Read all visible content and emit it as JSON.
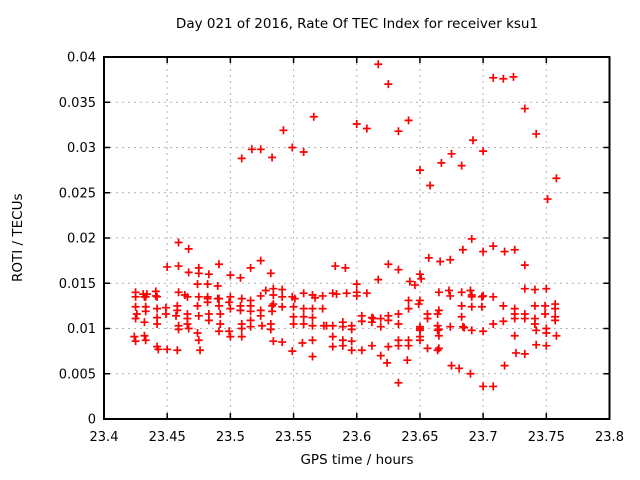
{
  "chart_data": {
    "type": "scatter",
    "title": "Day 021 of 2016, Rate Of TEC Index for receiver ksu1",
    "xlabel": "GPS time / hours",
    "ylabel": "ROTI / TECUs",
    "xlim": [
      23.4,
      23.8
    ],
    "ylim": [
      0,
      0.04
    ],
    "xticks": [
      23.4,
      23.45,
      23.5,
      23.55,
      23.6,
      23.65,
      23.7,
      23.75,
      23.8
    ],
    "xtick_labels": [
      "23.4",
      "23.45",
      "23.5",
      "23.55",
      "23.6",
      "23.65",
      "23.7",
      "23.75",
      "23.8"
    ],
    "yticks": [
      0,
      0.005,
      0.01,
      0.015,
      0.02,
      0.025,
      0.03,
      0.035,
      0.04
    ],
    "ytick_labels": [
      "0",
      "0.005",
      "0.01",
      "0.015",
      "0.02",
      "0.025",
      "0.03",
      "0.035",
      "0.04"
    ],
    "grid": "dashed",
    "legend": "none",
    "marker": "plus",
    "marker_color": "#ff0000",
    "grid_color": "#b3b3b3",
    "border_color": "#000000",
    "background_color": "#ffffff",
    "points": [
      [
        23.509,
        0.0288
      ],
      [
        23.517,
        0.0298
      ],
      [
        23.524,
        0.0298
      ],
      [
        23.533,
        0.0289
      ],
      [
        23.542,
        0.0319
      ],
      [
        23.549,
        0.03
      ],
      [
        23.558,
        0.0295
      ],
      [
        23.566,
        0.0334
      ],
      [
        23.6,
        0.0326
      ],
      [
        23.608,
        0.0321
      ],
      [
        23.617,
        0.0392
      ],
      [
        23.625,
        0.037
      ],
      [
        23.633,
        0.0318
      ],
      [
        23.641,
        0.033
      ],
      [
        23.65,
        0.0275
      ],
      [
        23.658,
        0.0258
      ],
      [
        23.667,
        0.0283
      ],
      [
        23.675,
        0.0293
      ],
      [
        23.683,
        0.028
      ],
      [
        23.692,
        0.0308
      ],
      [
        23.7,
        0.0296
      ],
      [
        23.708,
        0.0377
      ],
      [
        23.716,
        0.0376
      ],
      [
        23.724,
        0.0378
      ],
      [
        23.733,
        0.0343
      ],
      [
        23.742,
        0.0315
      ],
      [
        23.751,
        0.0243
      ],
      [
        23.758,
        0.0266
      ],
      [
        23.459,
        0.0195
      ],
      [
        23.467,
        0.0188
      ],
      [
        23.45,
        0.0168
      ],
      [
        23.459,
        0.0169
      ],
      [
        23.467,
        0.0162
      ],
      [
        23.475,
        0.0167
      ],
      [
        23.475,
        0.0161
      ],
      [
        23.483,
        0.016
      ],
      [
        23.491,
        0.0171
      ],
      [
        23.5,
        0.0159
      ],
      [
        23.508,
        0.0156
      ],
      [
        23.516,
        0.0167
      ],
      [
        23.524,
        0.0175
      ],
      [
        23.532,
        0.0161
      ],
      [
        23.583,
        0.0169
      ],
      [
        23.591,
        0.0167
      ],
      [
        23.617,
        0.0154
      ],
      [
        23.625,
        0.0171
      ],
      [
        23.633,
        0.0165
      ],
      [
        23.642,
        0.0152
      ],
      [
        23.646,
        0.0148
      ],
      [
        23.65,
        0.016
      ],
      [
        23.651,
        0.0155
      ],
      [
        23.657,
        0.0178
      ],
      [
        23.666,
        0.0174
      ],
      [
        23.674,
        0.0176
      ],
      [
        23.684,
        0.0187
      ],
      [
        23.691,
        0.0199
      ],
      [
        23.7,
        0.0185
      ],
      [
        23.708,
        0.0191
      ],
      [
        23.717,
        0.0185
      ],
      [
        23.725,
        0.0187
      ],
      [
        23.733,
        0.017
      ],
      [
        23.474,
        0.0149
      ],
      [
        23.482,
        0.0149
      ],
      [
        23.49,
        0.0147
      ],
      [
        23.6,
        0.0149
      ],
      [
        23.425,
        0.014
      ],
      [
        23.431,
        0.0138
      ],
      [
        23.434,
        0.0138
      ],
      [
        23.441,
        0.0141
      ],
      [
        23.441,
        0.0136
      ],
      [
        23.459,
        0.014
      ],
      [
        23.464,
        0.0137
      ],
      [
        23.482,
        0.0133
      ],
      [
        23.49,
        0.0133
      ],
      [
        23.509,
        0.0133
      ],
      [
        23.524,
        0.0136
      ],
      [
        23.528,
        0.0142
      ],
      [
        23.534,
        0.0144
      ],
      [
        23.534,
        0.0137
      ],
      [
        23.541,
        0.0143
      ],
      [
        23.541,
        0.0135
      ],
      [
        23.549,
        0.0135
      ],
      [
        23.551,
        0.0133
      ],
      [
        23.558,
        0.0139
      ],
      [
        23.565,
        0.0137
      ],
      [
        23.567,
        0.0134
      ],
      [
        23.573,
        0.0136
      ],
      [
        23.581,
        0.0139
      ],
      [
        23.584,
        0.0138
      ],
      [
        23.592,
        0.0139
      ],
      [
        23.6,
        0.014
      ],
      [
        23.6,
        0.0136
      ],
      [
        23.608,
        0.0139
      ],
      [
        23.641,
        0.0131
      ],
      [
        23.649,
        0.0127
      ],
      [
        23.65,
        0.0131
      ],
      [
        23.665,
        0.014
      ],
      [
        23.673,
        0.0142
      ],
      [
        23.674,
        0.0136
      ],
      [
        23.683,
        0.014
      ],
      [
        23.69,
        0.0142
      ],
      [
        23.691,
        0.0137
      ],
      [
        23.7,
        0.0136
      ],
      [
        23.708,
        0.0135
      ],
      [
        23.733,
        0.0144
      ],
      [
        23.741,
        0.0143
      ],
      [
        23.75,
        0.0144
      ],
      [
        23.425,
        0.0135
      ],
      [
        23.432,
        0.0135
      ],
      [
        23.433,
        0.0135
      ],
      [
        23.442,
        0.0135
      ],
      [
        23.466,
        0.0135
      ],
      [
        23.475,
        0.0135
      ],
      [
        23.482,
        0.0135
      ],
      [
        23.491,
        0.0133
      ],
      [
        23.5,
        0.0135
      ],
      [
        23.516,
        0.0131
      ],
      [
        23.691,
        0.0135
      ],
      [
        23.699,
        0.0135
      ],
      [
        23.425,
        0.0124
      ],
      [
        23.425,
        0.0111
      ],
      [
        23.426,
        0.0116
      ],
      [
        23.433,
        0.0124
      ],
      [
        23.433,
        0.0119
      ],
      [
        23.442,
        0.0122
      ],
      [
        23.442,
        0.0112
      ],
      [
        23.449,
        0.0123
      ],
      [
        23.449,
        0.0116
      ],
      [
        23.457,
        0.0114
      ],
      [
        23.458,
        0.0125
      ],
      [
        23.458,
        0.012
      ],
      [
        23.466,
        0.0116
      ],
      [
        23.466,
        0.0111
      ],
      [
        23.474,
        0.0125
      ],
      [
        23.475,
        0.0114
      ],
      [
        23.482,
        0.0129
      ],
      [
        23.483,
        0.0116
      ],
      [
        23.483,
        0.0109
      ],
      [
        23.491,
        0.0125
      ],
      [
        23.492,
        0.0116
      ],
      [
        23.499,
        0.0129
      ],
      [
        23.5,
        0.0122
      ],
      [
        23.508,
        0.0125
      ],
      [
        23.508,
        0.012
      ],
      [
        23.516,
        0.0125
      ],
      [
        23.516,
        0.0119
      ],
      [
        23.516,
        0.0109
      ],
      [
        23.524,
        0.012
      ],
      [
        23.524,
        0.0114
      ],
      [
        23.533,
        0.0125
      ],
      [
        23.533,
        0.0119
      ],
      [
        23.534,
        0.0127
      ],
      [
        23.541,
        0.0124
      ],
      [
        23.55,
        0.0124
      ],
      [
        23.55,
        0.0113
      ],
      [
        23.558,
        0.0122
      ],
      [
        23.558,
        0.0113
      ],
      [
        23.565,
        0.0122
      ],
      [
        23.565,
        0.0112
      ],
      [
        23.573,
        0.0122
      ],
      [
        23.604,
        0.0114
      ],
      [
        23.604,
        0.0108
      ],
      [
        23.612,
        0.0112
      ],
      [
        23.613,
        0.0111
      ],
      [
        23.612,
        0.0107
      ],
      [
        23.619,
        0.0111
      ],
      [
        23.625,
        0.0114
      ],
      [
        23.625,
        0.0109
      ],
      [
        23.633,
        0.0116
      ],
      [
        23.641,
        0.0122
      ],
      [
        23.656,
        0.0116
      ],
      [
        23.656,
        0.0111
      ],
      [
        23.664,
        0.0116
      ],
      [
        23.665,
        0.012
      ],
      [
        23.683,
        0.0125
      ],
      [
        23.683,
        0.0113
      ],
      [
        23.691,
        0.0124
      ],
      [
        23.699,
        0.0124
      ],
      [
        23.716,
        0.0125
      ],
      [
        23.716,
        0.0108
      ],
      [
        23.725,
        0.0122
      ],
      [
        23.725,
        0.0116
      ],
      [
        23.725,
        0.0111
      ],
      [
        23.733,
        0.0116
      ],
      [
        23.733,
        0.0111
      ],
      [
        23.741,
        0.0125
      ],
      [
        23.741,
        0.0111
      ],
      [
        23.749,
        0.0125
      ],
      [
        23.749,
        0.0116
      ],
      [
        23.757,
        0.0127
      ],
      [
        23.757,
        0.0122
      ],
      [
        23.757,
        0.0113
      ],
      [
        23.757,
        0.0109
      ],
      [
        23.424,
        0.0091
      ],
      [
        23.432,
        0.0107
      ],
      [
        23.432,
        0.0092
      ],
      [
        23.442,
        0.0105
      ],
      [
        23.459,
        0.0103
      ],
      [
        23.459,
        0.0099
      ],
      [
        23.466,
        0.0105
      ],
      [
        23.467,
        0.01
      ],
      [
        23.474,
        0.0095
      ],
      [
        23.491,
        0.0097
      ],
      [
        23.492,
        0.0105
      ],
      [
        23.499,
        0.0097
      ],
      [
        23.5,
        0.0091
      ],
      [
        23.509,
        0.0105
      ],
      [
        23.509,
        0.01
      ],
      [
        23.509,
        0.0091
      ],
      [
        23.516,
        0.0102
      ],
      [
        23.525,
        0.0103
      ],
      [
        23.532,
        0.0105
      ],
      [
        23.532,
        0.0099
      ],
      [
        23.55,
        0.0105
      ],
      [
        23.558,
        0.0105
      ],
      [
        23.565,
        0.0103
      ],
      [
        23.574,
        0.0103
      ],
      [
        23.576,
        0.0103
      ],
      [
        23.581,
        0.0103
      ],
      [
        23.581,
        0.0091
      ],
      [
        23.589,
        0.0107
      ],
      [
        23.589,
        0.0102
      ],
      [
        23.596,
        0.0103
      ],
      [
        23.596,
        0.0099
      ],
      [
        23.619,
        0.0102
      ],
      [
        23.633,
        0.0105
      ],
      [
        23.65,
        0.0102
      ],
      [
        23.65,
        0.01
      ],
      [
        23.65,
        0.0098
      ],
      [
        23.65,
        0.0091
      ],
      [
        23.664,
        0.0103
      ],
      [
        23.664,
        0.0098
      ],
      [
        23.665,
        0.0099
      ],
      [
        23.665,
        0.0092
      ],
      [
        23.674,
        0.0102
      ],
      [
        23.684,
        0.0102
      ],
      [
        23.685,
        0.0101
      ],
      [
        23.691,
        0.0098
      ],
      [
        23.7,
        0.0097
      ],
      [
        23.708,
        0.0105
      ],
      [
        23.725,
        0.0092
      ],
      [
        23.741,
        0.0105
      ],
      [
        23.742,
        0.0098
      ],
      [
        23.75,
        0.01
      ],
      [
        23.75,
        0.0095
      ],
      [
        23.758,
        0.0092
      ],
      [
        23.425,
        0.0086
      ],
      [
        23.433,
        0.0087
      ],
      [
        23.442,
        0.008
      ],
      [
        23.443,
        0.0077
      ],
      [
        23.45,
        0.0077
      ],
      [
        23.458,
        0.0076
      ],
      [
        23.475,
        0.0087
      ],
      [
        23.476,
        0.0076
      ],
      [
        23.534,
        0.0086
      ],
      [
        23.541,
        0.0085
      ],
      [
        23.549,
        0.0075
      ],
      [
        23.557,
        0.0084
      ],
      [
        23.565,
        0.0087
      ],
      [
        23.565,
        0.0069
      ],
      [
        23.581,
        0.008
      ],
      [
        23.589,
        0.0087
      ],
      [
        23.589,
        0.0081
      ],
      [
        23.596,
        0.0086
      ],
      [
        23.596,
        0.0076
      ],
      [
        23.604,
        0.0076
      ],
      [
        23.612,
        0.0081
      ],
      [
        23.619,
        0.007
      ],
      [
        23.624,
        0.0062
      ],
      [
        23.625,
        0.008
      ],
      [
        23.633,
        0.0087
      ],
      [
        23.633,
        0.0081
      ],
      [
        23.64,
        0.0065
      ],
      [
        23.641,
        0.0087
      ],
      [
        23.641,
        0.0081
      ],
      [
        23.65,
        0.0087
      ],
      [
        23.656,
        0.0078
      ],
      [
        23.664,
        0.0076
      ],
      [
        23.665,
        0.0078
      ],
      [
        23.726,
        0.0073
      ],
      [
        23.733,
        0.0072
      ],
      [
        23.742,
        0.0082
      ],
      [
        23.75,
        0.0081
      ],
      [
        23.633,
        0.004
      ],
      [
        23.675,
        0.0059
      ],
      [
        23.681,
        0.0056
      ],
      [
        23.69,
        0.005
      ],
      [
        23.7,
        0.0036
      ],
      [
        23.708,
        0.0036
      ],
      [
        23.717,
        0.0059
      ]
    ]
  }
}
